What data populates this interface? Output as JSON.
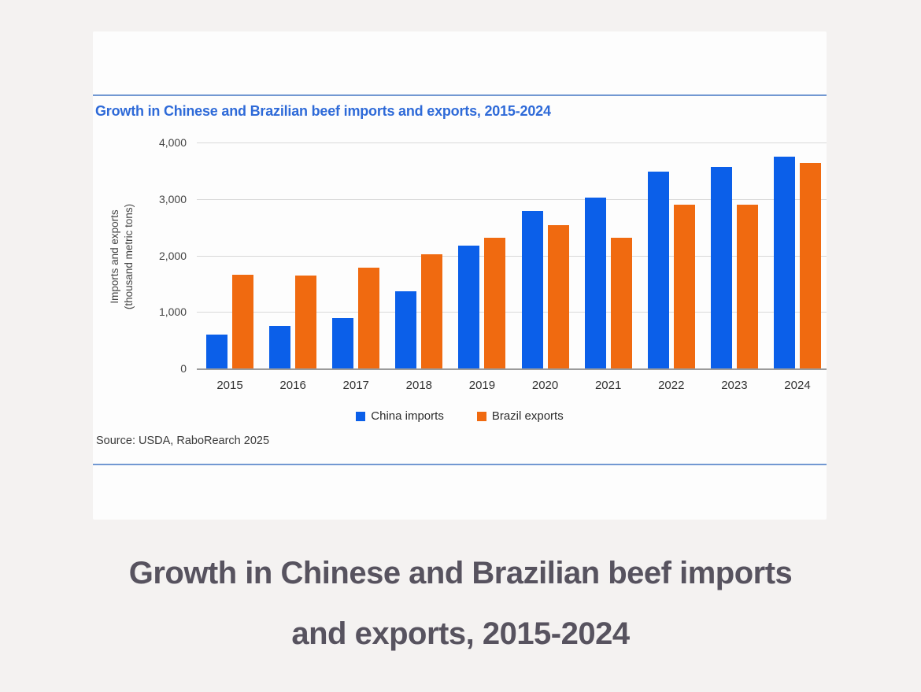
{
  "page": {
    "caption": "Growth in Chinese and Brazilian beef imports and exports, 2015-2024"
  },
  "chart_data": {
    "type": "bar",
    "title": "Growth in Chinese and Brazilian beef imports and exports, 2015-2024",
    "source": "Source: USDA, RaboRearch 2025",
    "ylabel_line1": "Imports and exports",
    "ylabel_line2": "(thousand metric tons)",
    "categories": [
      "2015",
      "2016",
      "2017",
      "2018",
      "2019",
      "2020",
      "2021",
      "2022",
      "2023",
      "2024"
    ],
    "series": [
      {
        "name": "China imports",
        "color": "#0b5fe9",
        "values": [
          600,
          750,
          890,
          1360,
          2170,
          2790,
          3030,
          3490,
          3570,
          3750
        ]
      },
      {
        "name": "Brazil exports",
        "color": "#f06a10",
        "values": [
          1660,
          1650,
          1790,
          2020,
          2310,
          2530,
          2320,
          2900,
          2900,
          3640
        ]
      }
    ],
    "ylim": [
      0,
      4000
    ],
    "yticks": [
      {
        "value": 0,
        "label": "0"
      },
      {
        "value": 1000,
        "label": "1,000"
      },
      {
        "value": 2000,
        "label": "2,000"
      },
      {
        "value": 3000,
        "label": "3,000"
      },
      {
        "value": 4000,
        "label": "4,000"
      }
    ],
    "grid": "horizontal",
    "legend_position": "bottom",
    "colors": {
      "title": "#2e6ad8",
      "divider": "#7298d2",
      "grid": "#d9d9d9",
      "axis": "#9b9b9b",
      "caption": "#57535f"
    }
  }
}
